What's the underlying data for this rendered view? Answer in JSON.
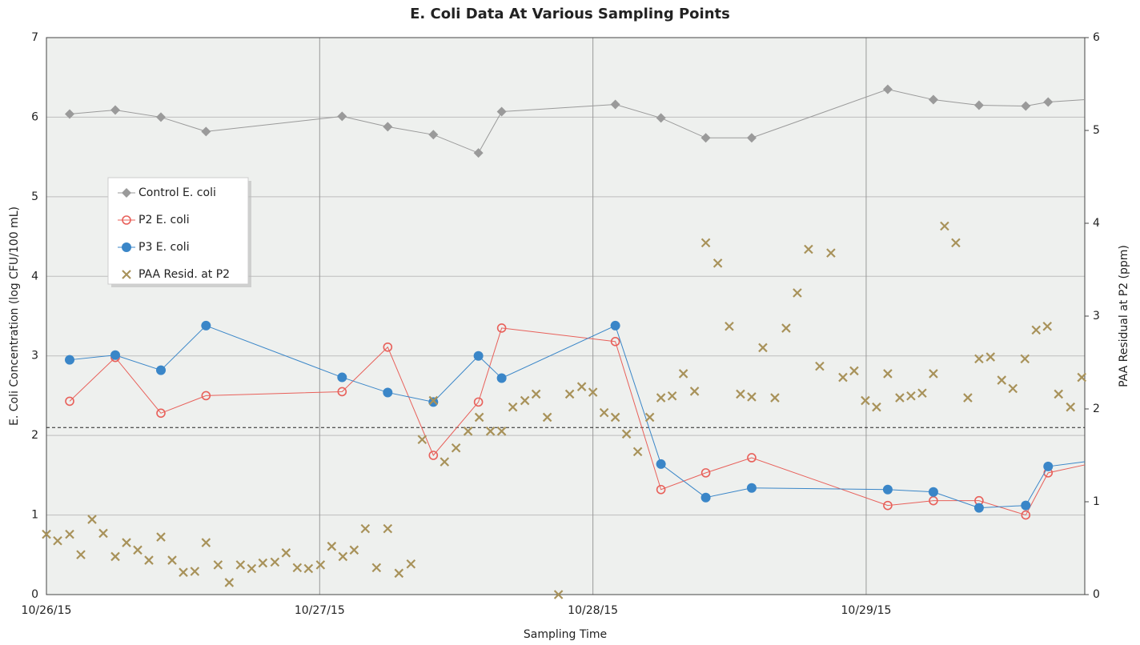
{
  "chart_data": {
    "type": "line",
    "title": "E. Coli Data At Various Sampling Points",
    "x_label": "Sampling Time",
    "y_label": "E. Coli Concentration (log CFU/100 mL)",
    "y2_label": "PAA Residual at P2 (ppm)",
    "xlim": [
      0,
      3.8
    ],
    "xticks": [
      {
        "value": 0,
        "label": "10/26/15"
      },
      {
        "value": 1,
        "label": "10/27/15"
      },
      {
        "value": 2,
        "label": "10/28/15"
      },
      {
        "value": 3,
        "label": "10/29/15"
      }
    ],
    "ylim": [
      0,
      7
    ],
    "yticks": [
      0,
      1,
      2,
      3,
      4,
      5,
      6,
      7
    ],
    "y2lim": [
      0,
      6
    ],
    "y2ticks": [
      0,
      1,
      2,
      3,
      4,
      5,
      6
    ],
    "grid": true,
    "legend": "upper left",
    "reference_line": 2.1,
    "series": [
      {
        "name": "Control E. coli",
        "color": "#9a9a9a",
        "marker": "diamond",
        "line": true,
        "x": [
          0.085,
          0.252,
          0.419,
          0.584,
          1.082,
          1.249,
          1.416,
          1.581,
          1.666,
          2.082,
          2.249,
          2.413,
          2.581,
          3.079,
          3.246,
          3.413,
          3.584,
          3.666,
          3.8
        ],
        "values": [
          6.04,
          6.09,
          6.0,
          5.82,
          6.01,
          5.88,
          5.78,
          5.55,
          6.07,
          6.16,
          5.99,
          5.74,
          5.74,
          6.35,
          6.22,
          6.15,
          6.14,
          6.19,
          6.22
        ]
      },
      {
        "name": "P2 E. coli",
        "color": "#e8605a",
        "marker": "circle-open",
        "line": true,
        "x": [
          0.085,
          0.252,
          0.419,
          0.584,
          1.082,
          1.249,
          1.416,
          1.581,
          1.666,
          2.082,
          2.249,
          2.413,
          2.581,
          3.079,
          3.246,
          3.413,
          3.584,
          3.666,
          3.8
        ],
        "values": [
          2.43,
          2.98,
          2.28,
          2.5,
          2.55,
          3.11,
          1.75,
          2.42,
          3.35,
          3.18,
          1.32,
          1.53,
          1.72,
          1.12,
          1.18,
          1.18,
          1.0,
          1.53,
          1.63
        ]
      },
      {
        "name": "P3 E. coli",
        "color": "#3a86c8",
        "marker": "circle",
        "line": true,
        "x": [
          0.085,
          0.252,
          0.419,
          0.584,
          1.082,
          1.249,
          1.416,
          1.581,
          1.666,
          2.082,
          2.249,
          2.413,
          2.581,
          3.079,
          3.246,
          3.413,
          3.584,
          3.666,
          3.8
        ],
        "values": [
          2.95,
          3.01,
          2.82,
          3.38,
          2.73,
          2.54,
          2.42,
          3.0,
          2.72,
          3.38,
          1.64,
          1.22,
          1.34,
          1.32,
          1.29,
          1.09,
          1.12,
          1.61,
          1.67
        ]
      },
      {
        "name": "PAA Resid. at P2",
        "color": "#a8925a",
        "marker": "x",
        "line": false,
        "axis": "y2",
        "x": [
          0,
          0.041,
          0.085,
          0.126,
          0.167,
          0.208,
          0.252,
          0.293,
          0.334,
          0.375,
          0.419,
          0.46,
          0.501,
          0.543,
          0.584,
          0.628,
          0.669,
          0.71,
          0.751,
          0.792,
          0.836,
          0.877,
          0.918,
          0.959,
          1.003,
          1.044,
          1.085,
          1.126,
          1.167,
          1.208,
          1.249,
          1.29,
          1.334,
          1.375,
          1.416,
          1.457,
          1.499,
          1.543,
          1.584,
          1.625,
          1.666,
          1.707,
          1.751,
          1.792,
          1.833,
          1.874,
          1.915,
          1.959,
          2.0,
          2.041,
          2.082,
          2.123,
          2.164,
          2.208,
          2.249,
          2.29,
          2.331,
          2.372,
          2.413,
          2.457,
          2.499,
          2.54,
          2.581,
          2.622,
          2.666,
          2.707,
          2.748,
          2.789,
          2.83,
          2.871,
          2.915,
          2.956,
          2.997,
          3.038,
          3.079,
          3.123,
          3.164,
          3.205,
          3.246,
          3.287,
          3.328,
          3.372,
          3.413,
          3.455,
          3.496,
          3.537,
          3.581,
          3.622,
          3.663,
          3.704,
          3.748,
          3.789
        ],
        "values": [
          0.65,
          0.58,
          0.65,
          0.43,
          0.81,
          0.66,
          0.41,
          0.56,
          0.48,
          0.37,
          0.62,
          0.37,
          0.24,
          0.25,
          0.56,
          0.32,
          0.13,
          0.32,
          0.28,
          0.34,
          0.35,
          0.45,
          0.29,
          0.28,
          0.32,
          0.52,
          0.41,
          0.48,
          0.71,
          0.29,
          0.71,
          0.23,
          0.33,
          1.67,
          2.09,
          1.43,
          1.58,
          1.76,
          1.91,
          1.76,
          1.76,
          2.02,
          2.09,
          2.16,
          1.91,
          0,
          2.16,
          2.24,
          2.18,
          1.96,
          1.91,
          1.73,
          1.54,
          1.91,
          2.12,
          2.14,
          2.38,
          2.19,
          3.79,
          3.57,
          2.89,
          2.16,
          2.13,
          2.66,
          2.12,
          2.87,
          3.25,
          3.72,
          2.46,
          3.68,
          2.34,
          2.41,
          2.09,
          2.02,
          2.38,
          2.12,
          2.14,
          2.17,
          2.38,
          3.97,
          3.79,
          2.12,
          2.54,
          2.56,
          2.31,
          2.22,
          2.54,
          2.85,
          2.89,
          2.16,
          2.02,
          2.34
        ]
      }
    ]
  }
}
